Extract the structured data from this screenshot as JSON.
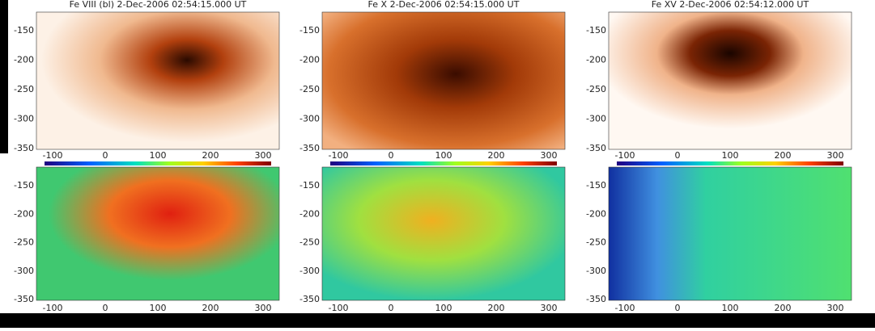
{
  "panels": [
    {
      "title": "Fe VIII (bl)  2-Dec-2006 02:54:15.000 UT",
      "yticks": [
        "-150",
        "-200",
        "-250",
        "-300",
        "-350"
      ],
      "xticks": [
        "-100",
        "0",
        "100",
        "200",
        "300"
      ]
    },
    {
      "title": "Fe X  2-Dec-2006 02:54:15.000 UT",
      "yticks": [
        "-150",
        "-200",
        "-250",
        "-300",
        "-350"
      ],
      "xticks": [
        "-100",
        "0",
        "100",
        "200",
        "300"
      ]
    },
    {
      "title": "Fe XV  2-Dec-2006 02:54:12.000 UT",
      "yticks": [
        "-150",
        "-200",
        "-250",
        "-300",
        "-350"
      ],
      "xticks": [
        "-100",
        "0",
        "100",
        "200",
        "300"
      ]
    }
  ],
  "bottom_panels": [
    {
      "yticks": [
        "-150",
        "-200",
        "-250",
        "-300",
        "-350"
      ],
      "xticks": [
        "-100",
        "0",
        "100",
        "200",
        "300"
      ]
    },
    {
      "yticks": [
        "-150",
        "-200",
        "-250",
        "-300",
        "-350"
      ],
      "xticks": [
        "-100",
        "0",
        "100",
        "200",
        "300"
      ]
    },
    {
      "yticks": [
        "-150",
        "-200",
        "-250",
        "-300",
        "-350"
      ],
      "xticks": [
        "-100",
        "0",
        "100",
        "200",
        "300"
      ]
    }
  ]
}
